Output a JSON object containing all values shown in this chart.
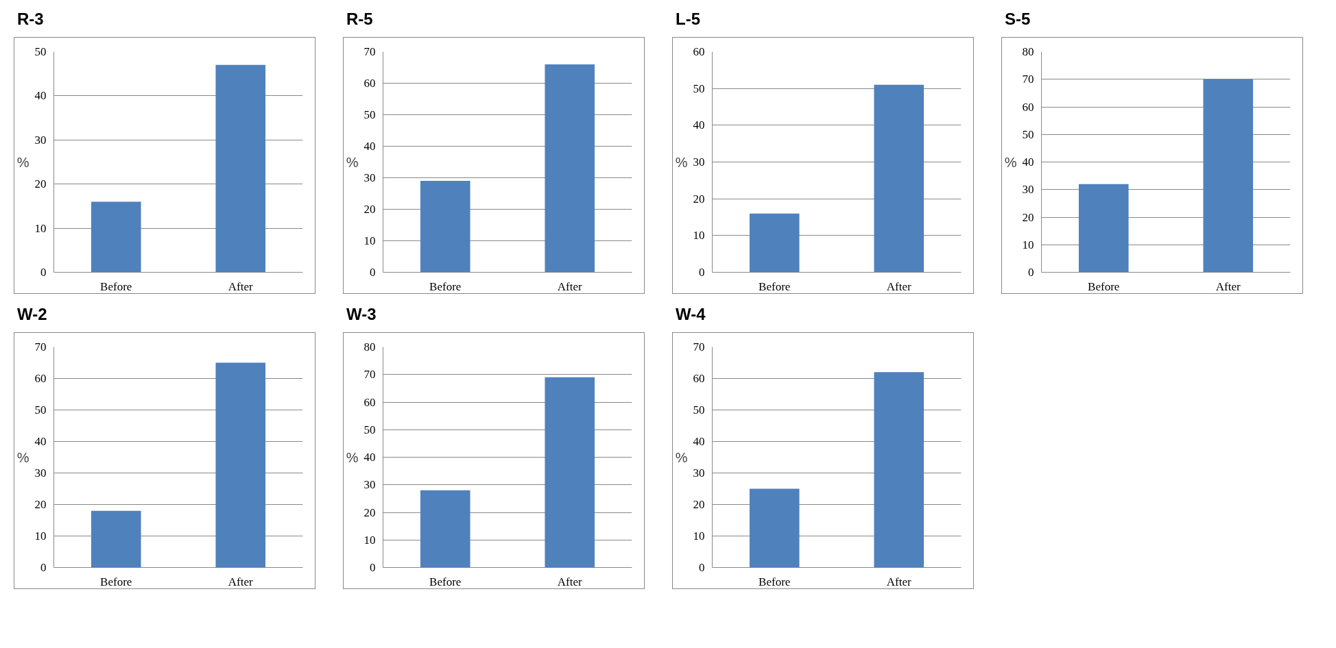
{
  "chart_data": [
    {
      "type": "bar",
      "title": "R-3",
      "ylabel": "%",
      "categories": [
        "Before",
        "After"
      ],
      "values": [
        16,
        47
      ],
      "color": "#4f81bd",
      "ylim": [
        0,
        50
      ],
      "yticks": [
        0,
        10,
        20,
        30,
        40,
        50
      ],
      "grid": "y"
    },
    {
      "type": "bar",
      "title": "R-5",
      "ylabel": "%",
      "categories": [
        "Before",
        "After"
      ],
      "values": [
        29,
        66
      ],
      "color": "#4f81bd",
      "ylim": [
        0,
        70
      ],
      "yticks": [
        0,
        10,
        20,
        30,
        40,
        50,
        60,
        70
      ],
      "grid": "y"
    },
    {
      "type": "bar",
      "title": "L-5",
      "ylabel": "%",
      "categories": [
        "Before",
        "After"
      ],
      "values": [
        16,
        51
      ],
      "color": "#4f81bd",
      "ylim": [
        0,
        60
      ],
      "yticks": [
        0,
        10,
        20,
        30,
        40,
        50,
        60
      ],
      "grid": "y"
    },
    {
      "type": "bar",
      "title": "S-5",
      "ylabel": "%",
      "categories": [
        "Before",
        "After"
      ],
      "values": [
        32,
        70
      ],
      "color": "#4f81bd",
      "ylim": [
        0,
        80
      ],
      "yticks": [
        0,
        10,
        20,
        30,
        40,
        50,
        60,
        70,
        80
      ],
      "grid": "y"
    },
    {
      "type": "bar",
      "title": "W-2",
      "ylabel": "%",
      "categories": [
        "Before",
        "After"
      ],
      "values": [
        18,
        65
      ],
      "color": "#4f81bd",
      "ylim": [
        0,
        70
      ],
      "yticks": [
        0,
        10,
        20,
        30,
        40,
        50,
        60,
        70
      ],
      "grid": "y"
    },
    {
      "type": "bar",
      "title": "W-3",
      "ylabel": "%",
      "categories": [
        "Before",
        "After"
      ],
      "values": [
        28,
        69
      ],
      "color": "#4f81bd",
      "ylim": [
        0,
        80
      ],
      "yticks": [
        0,
        10,
        20,
        30,
        40,
        50,
        60,
        70,
        80
      ],
      "grid": "y"
    },
    {
      "type": "bar",
      "title": "W-4",
      "ylabel": "%",
      "categories": [
        "Before",
        "After"
      ],
      "values": [
        25,
        62
      ],
      "color": "#4f81bd",
      "ylim": [
        0,
        70
      ],
      "yticks": [
        0,
        10,
        20,
        30,
        40,
        50,
        60,
        70
      ],
      "grid": "y"
    }
  ]
}
